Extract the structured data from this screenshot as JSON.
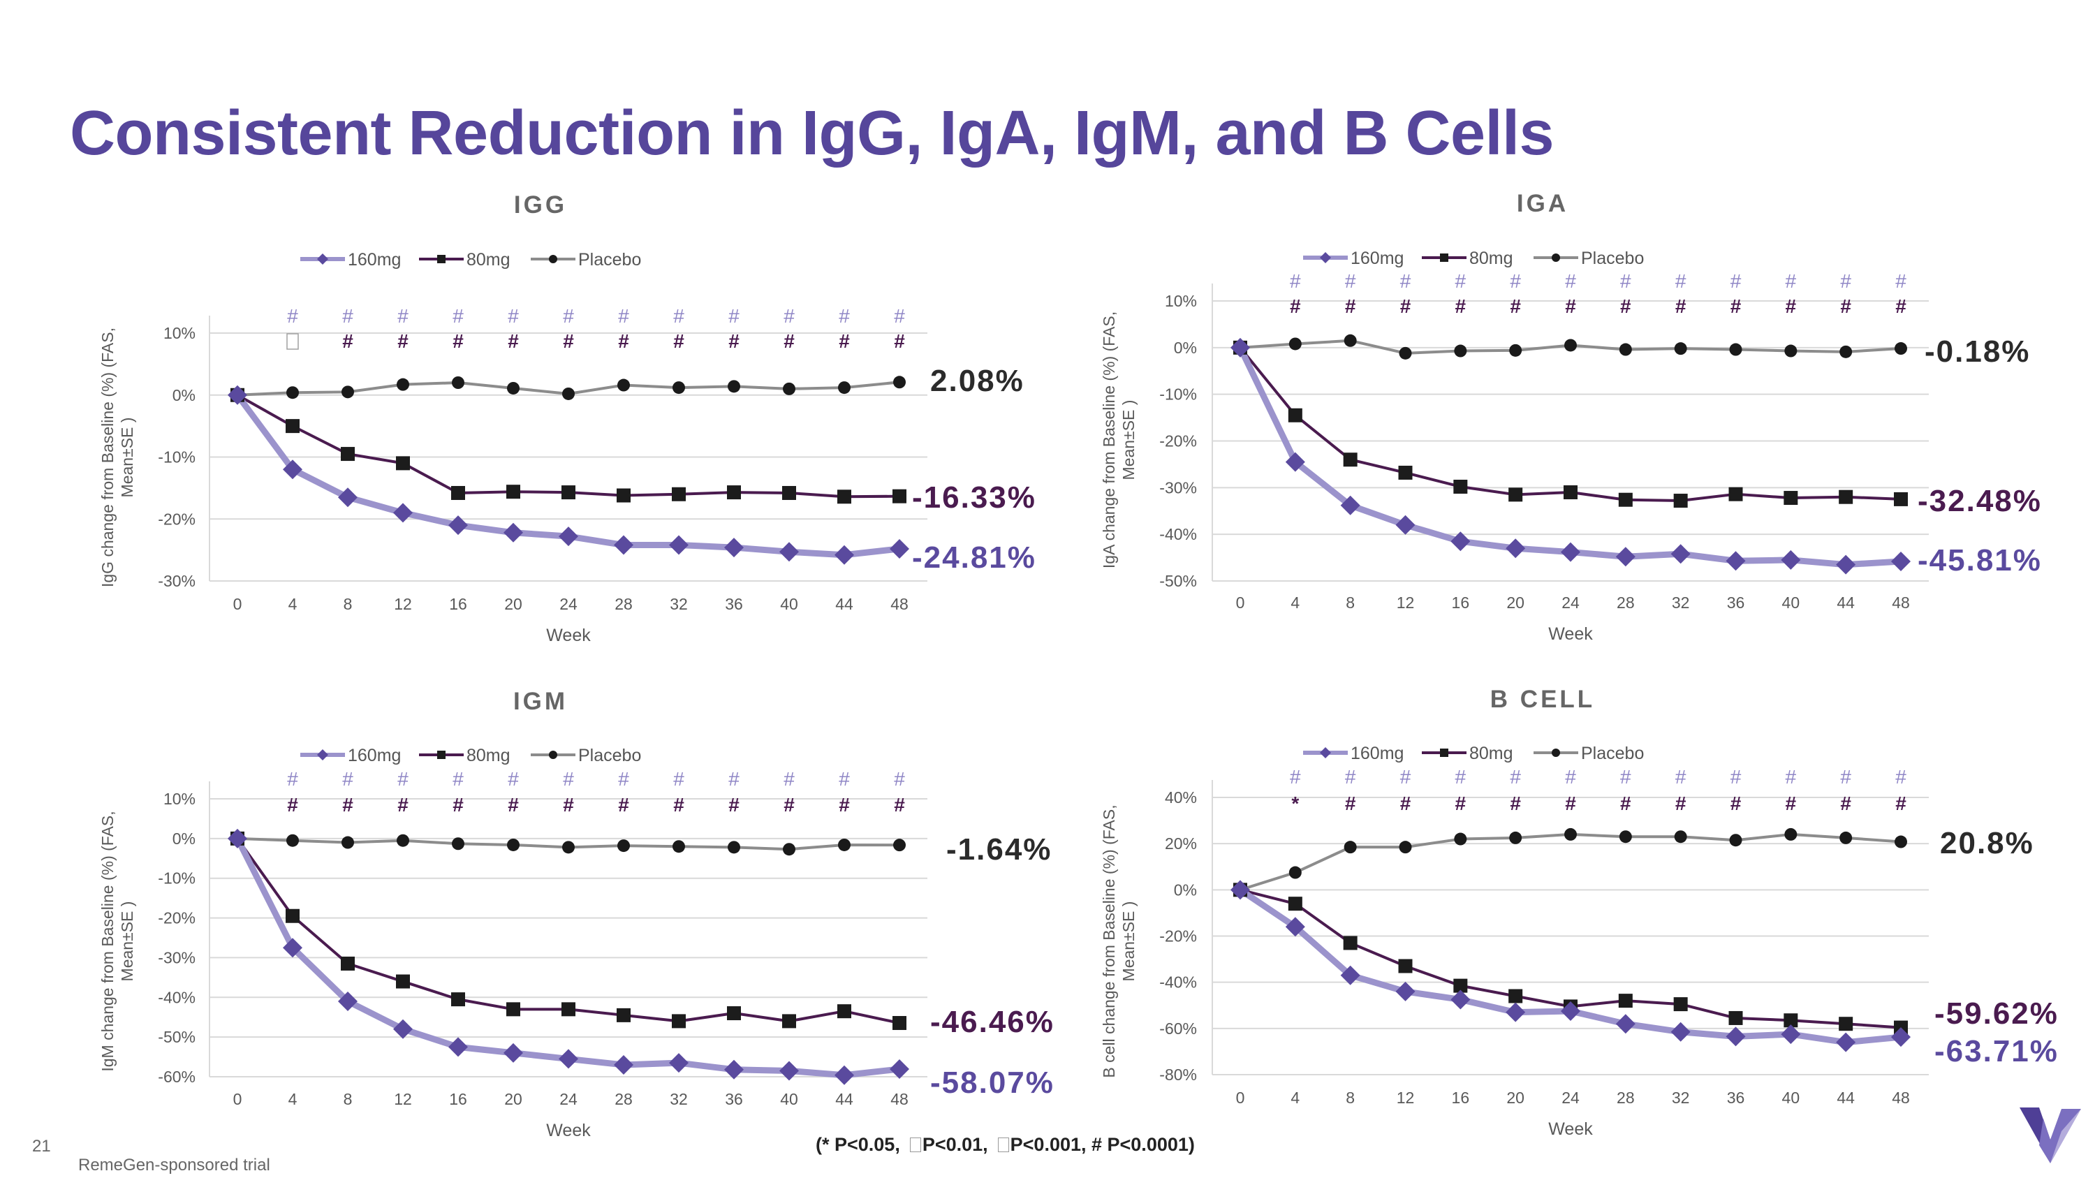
{
  "title": "Consistent Reduction in IgG, IgA, IgM, and B Cells",
  "page_number": "21",
  "footnote": "RemeGen-sponsored trial",
  "significance_legend": {
    "p05": "(* P<0.05,",
    "p01": "P<0.01,",
    "p001": "P<0.001, # P<0.0001)"
  },
  "colors": {
    "title": "#56469b",
    "s160": "#9b93cc",
    "s160_marker": "#5a4a9e",
    "s80": "#4a1b4f",
    "placebo": "#8c8c8c",
    "placebo_marker": "#1a1a1a",
    "hash_160": "#8f86c6",
    "hash_80": "#4a1b4f",
    "label_160": "#5a4a9e",
    "label_80": "#4a1b4f",
    "label_placebo": "#2b2b2b"
  },
  "chart_data": [
    {
      "id": "igg",
      "type": "line",
      "title": "IGG",
      "xlabel": "Week",
      "ylabel": "IgG change from Baseline (%)  (FAS, Mean±SE )",
      "x": [
        0,
        4,
        8,
        12,
        16,
        20,
        24,
        28,
        32,
        36,
        40,
        44,
        48
      ],
      "ylim": [
        -30,
        10
      ],
      "yticks": [
        10,
        0,
        -10,
        -20,
        -30
      ],
      "yticklabels": [
        "10%",
        "0%",
        "-10%",
        "-20%",
        "-30%"
      ],
      "legend": [
        "160mg",
        "80mg",
        "Placebo"
      ],
      "series": [
        {
          "name": "160mg",
          "values": [
            0,
            -12,
            -16.5,
            -19,
            -21,
            -22.2,
            -22.8,
            -24.2,
            -24.2,
            -24.6,
            -25.3,
            -25.8,
            -24.81
          ],
          "end_label": "-24.81%"
        },
        {
          "name": "80mg",
          "values": [
            0,
            -5,
            -9.5,
            -11,
            -15.8,
            -15.6,
            -15.7,
            -16.2,
            -16,
            -15.7,
            -15.8,
            -16.4,
            -16.33
          ],
          "end_label": "-16.33%"
        },
        {
          "name": "Placebo",
          "values": [
            0,
            0.4,
            0.5,
            1.7,
            2,
            1.1,
            0.2,
            1.6,
            1.2,
            1.4,
            1,
            1.2,
            2.08
          ],
          "end_label": "2.08%"
        }
      ],
      "sig_160": [
        "",
        "#",
        "#",
        "#",
        "#",
        "#",
        "#",
        "#",
        "#",
        "#",
        "#",
        "#",
        "#"
      ],
      "sig_80": [
        "",
        "□",
        "#",
        "#",
        "#",
        "#",
        "#",
        "#",
        "#",
        "#",
        "#",
        "#",
        "#"
      ]
    },
    {
      "id": "iga",
      "type": "line",
      "title": "IGA",
      "xlabel": "Week",
      "ylabel": "IgA change from Baseline (%)  (FAS, Mean±SE )",
      "x": [
        0,
        4,
        8,
        12,
        16,
        20,
        24,
        28,
        32,
        36,
        40,
        44,
        48
      ],
      "ylim": [
        -50,
        10
      ],
      "yticks": [
        10,
        0,
        -10,
        -20,
        -30,
        -40,
        -50
      ],
      "yticklabels": [
        "10%",
        "0%",
        "-10%",
        "-20%",
        "-30%",
        "-40%",
        "-50%"
      ],
      "legend": [
        "160mg",
        "80mg",
        "Placebo"
      ],
      "series": [
        {
          "name": "160mg",
          "values": [
            0,
            -24.5,
            -33.8,
            -38,
            -41.5,
            -43,
            -43.8,
            -44.8,
            -44.2,
            -45.7,
            -45.5,
            -46.5,
            -45.81
          ],
          "end_label": "-45.81%"
        },
        {
          "name": "80mg",
          "values": [
            0,
            -14.5,
            -24,
            -26.8,
            -29.8,
            -31.5,
            -31,
            -32.6,
            -32.8,
            -31.4,
            -32.2,
            -32,
            -32.48
          ],
          "end_label": "-32.48%"
        },
        {
          "name": "Placebo",
          "values": [
            0,
            0.8,
            1.5,
            -1.2,
            -0.7,
            -0.6,
            0.5,
            -0.4,
            -0.2,
            -0.4,
            -0.7,
            -0.9,
            -0.18
          ],
          "end_label": "-0.18%"
        }
      ],
      "sig_160": [
        "",
        "#",
        "#",
        "#",
        "#",
        "#",
        "#",
        "#",
        "#",
        "#",
        "#",
        "#",
        "#"
      ],
      "sig_80": [
        "",
        "#",
        "#",
        "#",
        "#",
        "#",
        "#",
        "#",
        "#",
        "#",
        "#",
        "#",
        "#"
      ]
    },
    {
      "id": "igm",
      "type": "line",
      "title": "IGM",
      "xlabel": "Week",
      "ylabel": "IgM change from Baseline (%)  (FAS, Mean±SE )",
      "x": [
        0,
        4,
        8,
        12,
        16,
        20,
        24,
        28,
        32,
        36,
        40,
        44,
        48
      ],
      "ylim": [
        -60,
        10
      ],
      "yticks": [
        10,
        0,
        -10,
        -20,
        -30,
        -40,
        -50,
        -60
      ],
      "yticklabels": [
        "10%",
        "0%",
        "-10%",
        "-20%",
        "-30%",
        "-40%",
        "-50%",
        "-60%"
      ],
      "legend": [
        "160mg",
        "80mg",
        "Placebo"
      ],
      "series": [
        {
          "name": "160mg",
          "values": [
            0,
            -27.5,
            -41,
            -48,
            -52.5,
            -54,
            -55.5,
            -57,
            -56.5,
            -58.2,
            -58.5,
            -59.6,
            -58.07
          ],
          "end_label": "-58.07%"
        },
        {
          "name": "80mg",
          "values": [
            0,
            -19.5,
            -31.5,
            -36,
            -40.5,
            -43,
            -43,
            -44.5,
            -46,
            -44,
            -46,
            -43.5,
            -46.46
          ],
          "end_label": "-46.46%"
        },
        {
          "name": "Placebo",
          "values": [
            0,
            -0.5,
            -1,
            -0.5,
            -1.3,
            -1.6,
            -2.2,
            -1.8,
            -2,
            -2.2,
            -2.7,
            -1.6,
            -1.64
          ],
          "end_label": "-1.64%"
        }
      ],
      "sig_160": [
        "",
        "#",
        "#",
        "#",
        "#",
        "#",
        "#",
        "#",
        "#",
        "#",
        "#",
        "#",
        "#"
      ],
      "sig_80": [
        "",
        "#",
        "#",
        "#",
        "#",
        "#",
        "#",
        "#",
        "#",
        "#",
        "#",
        "#",
        "#"
      ]
    },
    {
      "id": "bcell",
      "type": "line",
      "title": "B CELL",
      "xlabel": "Week",
      "ylabel": "B cell change from Baseline (%) (FAS, Mean±SE )",
      "x": [
        0,
        4,
        8,
        12,
        16,
        20,
        24,
        28,
        32,
        36,
        40,
        44,
        48
      ],
      "ylim": [
        -80,
        40
      ],
      "yticks": [
        40,
        20,
        0,
        -20,
        -40,
        -60,
        -80
      ],
      "yticklabels": [
        "40%",
        "20%",
        "0%",
        "-20%",
        "-40%",
        "-60%",
        "-80%"
      ],
      "legend": [
        "160mg",
        "80mg",
        "Placebo"
      ],
      "series": [
        {
          "name": "160mg",
          "values": [
            0,
            -16,
            -37,
            -44,
            -47.5,
            -53,
            -52.5,
            -58,
            -61.5,
            -63.5,
            -62.5,
            -66,
            -63.71
          ],
          "end_label": "-63.71%"
        },
        {
          "name": "80mg",
          "values": [
            0,
            -6,
            -23,
            -33,
            -41.5,
            -46,
            -50.5,
            -48,
            -49.5,
            -55.5,
            -56.5,
            -58,
            -59.62
          ],
          "end_label": "-59.62%"
        },
        {
          "name": "Placebo",
          "values": [
            0,
            7.5,
            18.5,
            18.5,
            22,
            22.5,
            24,
            23,
            23,
            21.5,
            24,
            22.5,
            20.8
          ],
          "end_label": "20.8%"
        }
      ],
      "sig_160": [
        "",
        "#",
        "#",
        "#",
        "#",
        "#",
        "#",
        "#",
        "#",
        "#",
        "#",
        "#",
        "#"
      ],
      "sig_80": [
        "",
        "*",
        "#",
        "#",
        "#",
        "#",
        "#",
        "#",
        "#",
        "#",
        "#",
        "#",
        "#"
      ]
    }
  ]
}
